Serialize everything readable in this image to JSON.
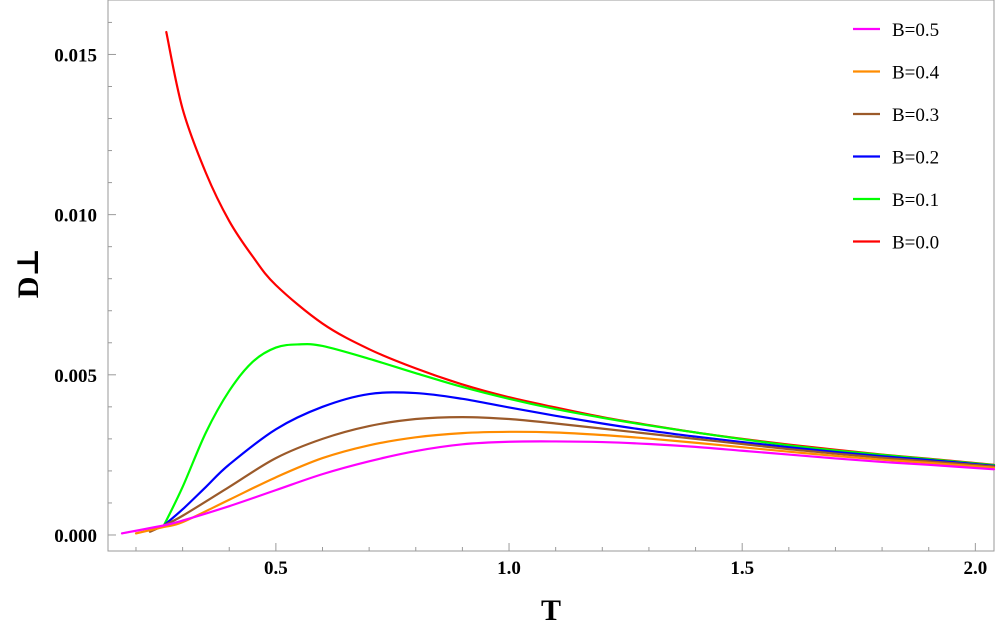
{
  "chart_data": {
    "type": "line",
    "title": "",
    "xlabel": "T",
    "ylabel": "D⊥",
    "xlim": [
      0.14,
      2.04
    ],
    "ylim": [
      -0.0005,
      0.0167
    ],
    "x_ticks": [
      0.5,
      1.0,
      1.5,
      2.0
    ],
    "x_tick_labels": [
      "0.5",
      "1.0",
      "1.5",
      "2.0"
    ],
    "y_ticks": [
      0.0,
      0.005,
      0.01,
      0.015
    ],
    "y_tick_labels": [
      "0.000",
      "0.005",
      "0.010",
      "0.015"
    ],
    "grid": false,
    "legend_position": "top-right",
    "series": [
      {
        "name": "B=0.5",
        "color": "#ff00ff",
        "x": [
          0.17,
          0.26,
          0.3,
          0.4,
          0.5,
          0.6,
          0.7,
          0.8,
          0.9,
          1.0,
          1.1,
          1.2,
          1.3,
          1.4,
          1.5,
          1.6,
          1.7,
          1.8,
          1.9,
          2.04
        ],
        "y": [
          5e-05,
          0.0003,
          0.00045,
          0.0009,
          0.0014,
          0.0019,
          0.0023,
          0.00262,
          0.00283,
          0.00291,
          0.00292,
          0.0029,
          0.00284,
          0.00275,
          0.00263,
          0.00251,
          0.00239,
          0.00228,
          0.00219,
          0.00205
        ]
      },
      {
        "name": "B=0.4",
        "color": "#ff8c00",
        "x": [
          0.2,
          0.26,
          0.3,
          0.4,
          0.5,
          0.6,
          0.7,
          0.8,
          0.9,
          1.0,
          1.1,
          1.2,
          1.3,
          1.4,
          1.5,
          1.6,
          1.7,
          1.8,
          1.9,
          2.04
        ],
        "y": [
          5e-05,
          0.00025,
          0.0004,
          0.0011,
          0.0018,
          0.0024,
          0.0028,
          0.00305,
          0.00318,
          0.00322,
          0.0032,
          0.00312,
          0.00301,
          0.00288,
          0.00274,
          0.0026,
          0.00247,
          0.00235,
          0.00225,
          0.0021
        ]
      },
      {
        "name": "B=0.3",
        "color": "#9b5a2a",
        "x": [
          0.23,
          0.26,
          0.3,
          0.4,
          0.5,
          0.6,
          0.7,
          0.8,
          0.9,
          1.0,
          1.1,
          1.2,
          1.3,
          1.4,
          1.5,
          1.6,
          1.7,
          1.8,
          1.9,
          2.04
        ],
        "y": [
          0.0001,
          0.0003,
          0.0006,
          0.0015,
          0.0024,
          0.003,
          0.0034,
          0.00362,
          0.00368,
          0.00362,
          0.00348,
          0.00332,
          0.00316,
          0.003,
          0.00284,
          0.00268,
          0.00254,
          0.00241,
          0.0023,
          0.00214
        ]
      },
      {
        "name": "B=0.2",
        "color": "#0000ff",
        "x": [
          0.26,
          0.3,
          0.35,
          0.4,
          0.5,
          0.6,
          0.7,
          0.8,
          0.9,
          1.0,
          1.1,
          1.2,
          1.3,
          1.4,
          1.5,
          1.6,
          1.7,
          1.8,
          1.9,
          2.04
        ],
        "y": [
          0.0003,
          0.0008,
          0.0015,
          0.0022,
          0.0033,
          0.004,
          0.0044,
          0.00443,
          0.00425,
          0.00398,
          0.00372,
          0.00348,
          0.00326,
          0.00307,
          0.0029,
          0.00274,
          0.00259,
          0.00246,
          0.00234,
          0.00216
        ]
      },
      {
        "name": "B=0.1",
        "color": "#00ff00",
        "x": [
          0.26,
          0.3,
          0.35,
          0.4,
          0.45,
          0.5,
          0.55,
          0.6,
          0.7,
          0.8,
          0.9,
          1.0,
          1.1,
          1.2,
          1.3,
          1.4,
          1.5,
          1.6,
          1.7,
          1.8,
          1.9,
          2.04
        ],
        "y": [
          0.0003,
          0.0015,
          0.0032,
          0.0045,
          0.0054,
          0.00585,
          0.00595,
          0.0059,
          0.0055,
          0.00505,
          0.00462,
          0.00425,
          0.00393,
          0.00366,
          0.00342,
          0.0032,
          0.00299,
          0.0028,
          0.00264,
          0.0025,
          0.00237,
          0.00218
        ]
      },
      {
        "name": "B=0.0",
        "color": "#ff0000",
        "x": [
          0.265,
          0.3,
          0.35,
          0.4,
          0.45,
          0.5,
          0.6,
          0.7,
          0.8,
          0.9,
          1.0,
          1.1,
          1.2,
          1.3,
          1.4,
          1.5,
          1.6,
          1.7,
          1.8,
          1.9,
          2.04
        ],
        "y": [
          0.0157,
          0.0133,
          0.0113,
          0.0098,
          0.0087,
          0.0078,
          0.0066,
          0.0058,
          0.0052,
          0.0047,
          0.0043,
          0.00398,
          0.00368,
          0.00343,
          0.0032,
          0.003,
          0.00282,
          0.00266,
          0.00251,
          0.00238,
          0.00219
        ]
      }
    ]
  }
}
